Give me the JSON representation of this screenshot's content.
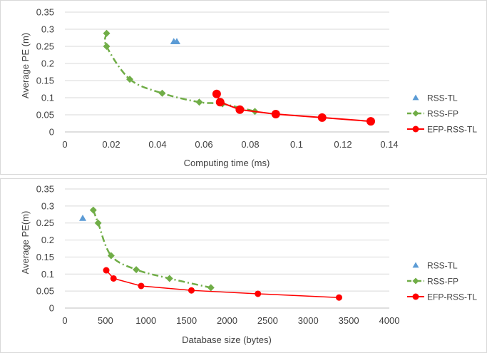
{
  "chart_data": [
    {
      "type": "scatter",
      "title": "",
      "xlabel": "Computing time (ms)",
      "ylabel": "Average PE (m)",
      "xlim": [
        0,
        0.14
      ],
      "ylim": [
        0,
        0.35
      ],
      "xticks": [
        "0",
        "0.02",
        "0.04",
        "0.06",
        "0.08",
        "0.1",
        "0.12",
        "0.14"
      ],
      "yticks": [
        "0",
        "0.05",
        "0.1",
        "0.15",
        "0.2",
        "0.25",
        "0.3",
        "0.35"
      ],
      "grid": "horizontal",
      "legend": "right",
      "series": [
        {
          "name": "RSS-TL",
          "color": "#5b9bd5",
          "marker": "triangle",
          "line": "none",
          "x": [
            0.047,
            0.0483
          ],
          "y": [
            0.264,
            0.264
          ]
        },
        {
          "name": "RSS-FP",
          "color": "#70ad47",
          "marker": "diamond",
          "line": "dash-dot",
          "x": [
            0.018,
            0.018,
            0.028,
            0.042,
            0.058,
            0.068,
            0.082
          ],
          "y": [
            0.288,
            0.25,
            0.154,
            0.113,
            0.087,
            0.082,
            0.06
          ]
        },
        {
          "name": "EFP-RSS-TL",
          "color": "#ff0000",
          "marker": "circle",
          "line": "solid",
          "x": [
            0.0655,
            0.067,
            0.0755,
            0.091,
            0.111,
            0.132
          ],
          "y": [
            0.111,
            0.087,
            0.065,
            0.052,
            0.042,
            0.031
          ]
        }
      ]
    },
    {
      "type": "scatter",
      "title": "",
      "xlabel": "Database size (bytes)",
      "ylabel": "Average PE(m)",
      "xlim": [
        0,
        4000
      ],
      "ylim": [
        0,
        0.35
      ],
      "xticks": [
        "0",
        "500",
        "1000",
        "1500",
        "2000",
        "2500",
        "3000",
        "3500",
        "4000"
      ],
      "yticks": [
        "0",
        "0.05",
        "0.1",
        "0.15",
        "0.2",
        "0.25",
        "0.3",
        "0.35"
      ],
      "grid": "horizontal",
      "legend": "right",
      "series": [
        {
          "name": "RSS-TL",
          "color": "#5b9bd5",
          "marker": "triangle",
          "line": "none",
          "x": [
            220
          ],
          "y": [
            0.264
          ]
        },
        {
          "name": "RSS-FP",
          "color": "#70ad47",
          "marker": "diamond",
          "line": "dash-dot",
          "x": [
            350,
            410,
            570,
            880,
            1290,
            1800
          ],
          "y": [
            0.288,
            0.25,
            0.154,
            0.113,
            0.087,
            0.06
          ]
        },
        {
          "name": "EFP-RSS-TL",
          "color": "#ff0000",
          "marker": "circle",
          "line": "solid",
          "x": [
            510,
            600,
            940,
            1560,
            2380,
            3380
          ],
          "y": [
            0.111,
            0.087,
            0.065,
            0.052,
            0.042,
            0.031
          ]
        }
      ]
    }
  ]
}
